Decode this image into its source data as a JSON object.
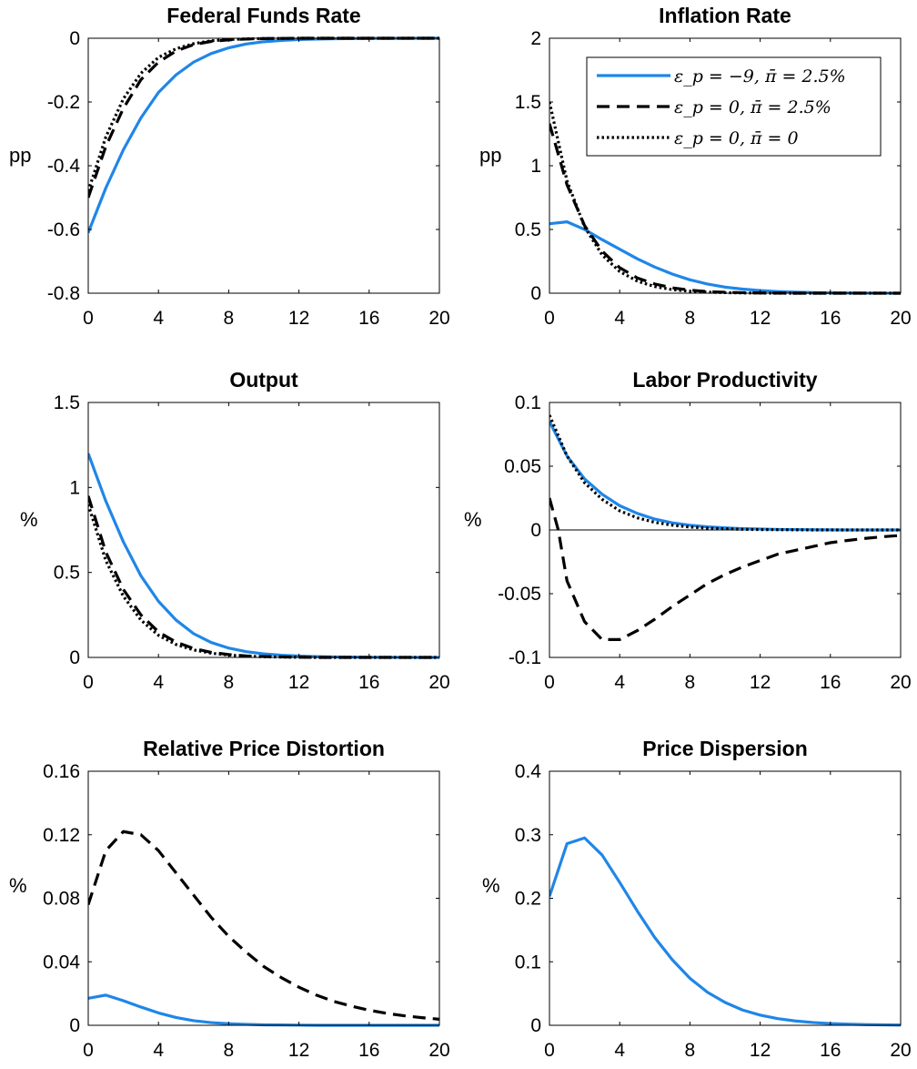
{
  "legend": {
    "entries": [
      "ε_p = −9, π̄ = 2.5%",
      "ε_p = 0, π̄ = 2.5%",
      "ε_p = 0, π̄ = 0"
    ]
  },
  "colors": {
    "baseline": "#1f86e8",
    "alt": "#000000",
    "zero_line": "#000000"
  },
  "chart_data": [
    {
      "type": "line",
      "title": "Federal Funds Rate",
      "ylabel": "pp",
      "xlim": [
        0,
        20
      ],
      "ylim": [
        -0.8,
        0
      ],
      "xticks": [
        0,
        4,
        8,
        12,
        16,
        20
      ],
      "yticks": [
        -0.8,
        -0.6,
        -0.4,
        -0.2,
        0
      ],
      "ytick_labels": [
        "-0.8",
        "-0.6",
        "-0.4",
        "-0.2",
        "0"
      ],
      "grid": false,
      "series": [
        {
          "style": "solid",
          "x": [
            0,
            1,
            2,
            3,
            4,
            5,
            6,
            7,
            8,
            9,
            10,
            11,
            12,
            13,
            14,
            15,
            16,
            17,
            18,
            19,
            20
          ],
          "y": [
            -0.61,
            -0.47,
            -0.35,
            -0.25,
            -0.17,
            -0.115,
            -0.075,
            -0.048,
            -0.03,
            -0.018,
            -0.011,
            -0.007,
            -0.004,
            -0.0025,
            -0.0015,
            -0.001,
            -0.0005,
            -0.0003,
            -0.0002,
            -0.0001,
            0
          ]
        },
        {
          "style": "dashed",
          "x": [
            0,
            1,
            2,
            3,
            4,
            5,
            6,
            7,
            8,
            9,
            10,
            11,
            12,
            13,
            14,
            15,
            16,
            17,
            18,
            19,
            20
          ],
          "y": [
            -0.5,
            -0.34,
            -0.22,
            -0.13,
            -0.075,
            -0.04,
            -0.02,
            -0.01,
            -0.005,
            -0.0025,
            -0.001,
            -0.0005,
            0,
            0,
            0,
            0,
            0,
            0,
            0,
            0,
            0
          ]
        },
        {
          "style": "dotted",
          "x": [
            0,
            1,
            2,
            3,
            4,
            5,
            6,
            7,
            8,
            9,
            10,
            11,
            12,
            13,
            14,
            15,
            16,
            17,
            18,
            19,
            20
          ],
          "y": [
            -0.48,
            -0.31,
            -0.19,
            -0.11,
            -0.06,
            -0.033,
            -0.017,
            -0.008,
            -0.004,
            -0.002,
            -0.001,
            -0.0005,
            0,
            0,
            0,
            0,
            0,
            0,
            0,
            0,
            0
          ]
        }
      ]
    },
    {
      "type": "line",
      "title": "Inflation Rate",
      "ylabel": "pp",
      "xlim": [
        0,
        20
      ],
      "ylim": [
        0,
        2
      ],
      "xticks": [
        0,
        4,
        8,
        12,
        16,
        20
      ],
      "yticks": [
        0,
        0.5,
        1,
        1.5,
        2
      ],
      "ytick_labels": [
        "0",
        "0.5",
        "1",
        "1.5",
        "2"
      ],
      "grid": false,
      "legend_position": "top-right",
      "series": [
        {
          "style": "solid",
          "x": [
            0,
            1,
            2,
            3,
            4,
            5,
            6,
            7,
            8,
            9,
            10,
            11,
            12,
            13,
            14,
            15,
            16,
            17,
            18,
            19,
            20
          ],
          "y": [
            0.545,
            0.56,
            0.5,
            0.42,
            0.345,
            0.27,
            0.205,
            0.15,
            0.105,
            0.072,
            0.048,
            0.032,
            0.021,
            0.013,
            0.008,
            0.005,
            0.003,
            0.002,
            0.001,
            0.0005,
            0
          ]
        },
        {
          "style": "dashed",
          "x": [
            0,
            1,
            2,
            3,
            4,
            5,
            6,
            7,
            8,
            9,
            10,
            11,
            12,
            13,
            14,
            15,
            16,
            17,
            18,
            19,
            20
          ],
          "y": [
            1.33,
            0.85,
            0.53,
            0.33,
            0.2,
            0.12,
            0.072,
            0.042,
            0.024,
            0.013,
            0.007,
            0.004,
            0.002,
            0.001,
            0,
            0,
            0,
            0,
            0,
            0,
            0
          ]
        },
        {
          "style": "dotted",
          "x": [
            0,
            1,
            2,
            3,
            4,
            5,
            6,
            7,
            8,
            9,
            10,
            11,
            12,
            13,
            14,
            15,
            16,
            17,
            18,
            19,
            20
          ],
          "y": [
            1.5,
            0.88,
            0.52,
            0.3,
            0.17,
            0.095,
            0.052,
            0.028,
            0.015,
            0.008,
            0.004,
            0.002,
            0.001,
            0,
            0,
            0,
            0,
            0,
            0,
            0,
            0
          ]
        }
      ]
    },
    {
      "type": "line",
      "title": "Output",
      "ylabel": "%",
      "xlim": [
        0,
        20
      ],
      "ylim": [
        0,
        1.5
      ],
      "xticks": [
        0,
        4,
        8,
        12,
        16,
        20
      ],
      "yticks": [
        0,
        0.5,
        1,
        1.5
      ],
      "ytick_labels": [
        "0",
        "0.5",
        "1",
        "1.5"
      ],
      "grid": false,
      "series": [
        {
          "style": "solid",
          "x": [
            0,
            1,
            2,
            3,
            4,
            5,
            6,
            7,
            8,
            9,
            10,
            11,
            12,
            13,
            14,
            15,
            16,
            17,
            18,
            19,
            20
          ],
          "y": [
            1.2,
            0.92,
            0.68,
            0.48,
            0.33,
            0.22,
            0.14,
            0.088,
            0.055,
            0.034,
            0.021,
            0.013,
            0.008,
            0.005,
            0.003,
            0.002,
            0.001,
            0.0005,
            0.0003,
            0.0001,
            0
          ]
        },
        {
          "style": "dashed",
          "x": [
            0,
            1,
            2,
            3,
            4,
            5,
            6,
            7,
            8,
            9,
            10,
            11,
            12,
            13,
            14,
            15,
            16,
            17,
            18,
            19,
            20
          ],
          "y": [
            0.95,
            0.62,
            0.4,
            0.25,
            0.15,
            0.09,
            0.053,
            0.03,
            0.017,
            0.009,
            0.005,
            0.003,
            0.001,
            0,
            0,
            0,
            0,
            0,
            0,
            0,
            0
          ]
        },
        {
          "style": "dotted",
          "x": [
            0,
            1,
            2,
            3,
            4,
            5,
            6,
            7,
            8,
            9,
            10,
            11,
            12,
            13,
            14,
            15,
            16,
            17,
            18,
            19,
            20
          ],
          "y": [
            0.9,
            0.57,
            0.36,
            0.22,
            0.13,
            0.076,
            0.044,
            0.025,
            0.014,
            0.007,
            0.004,
            0.002,
            0.001,
            0,
            0,
            0,
            0,
            0,
            0,
            0,
            0
          ]
        }
      ]
    },
    {
      "type": "line",
      "title": "Labor Productivity",
      "ylabel": "%",
      "xlim": [
        0,
        20
      ],
      "ylim": [
        -0.1,
        0.1
      ],
      "xticks": [
        0,
        4,
        8,
        12,
        16,
        20
      ],
      "yticks": [
        -0.1,
        -0.05,
        0,
        0.05,
        0.1
      ],
      "ytick_labels": [
        "-0.1",
        "-0.05",
        "0",
        "0.05",
        "0.1"
      ],
      "grid": false,
      "zero_line": true,
      "series": [
        {
          "style": "solid",
          "x": [
            0,
            1,
            2,
            3,
            4,
            5,
            6,
            7,
            8,
            9,
            10,
            11,
            12,
            13,
            14,
            15,
            16,
            17,
            18,
            19,
            20
          ],
          "y": [
            0.085,
            0.058,
            0.04,
            0.028,
            0.019,
            0.013,
            0.0085,
            0.0056,
            0.0037,
            0.0024,
            0.0016,
            0.001,
            0.0007,
            0.0004,
            0.0003,
            0.0002,
            0.0001,
            0,
            0,
            0,
            0
          ]
        },
        {
          "style": "dashed",
          "x": [
            0,
            0.5,
            1,
            2,
            3,
            4,
            5,
            6,
            7,
            8,
            9,
            10,
            11,
            12,
            13,
            14,
            15,
            16,
            17,
            18,
            19,
            20
          ],
          "y": [
            0.025,
            0,
            -0.04,
            -0.072,
            -0.086,
            -0.086,
            -0.079,
            -0.07,
            -0.06,
            -0.051,
            -0.042,
            -0.035,
            -0.029,
            -0.024,
            -0.019,
            -0.016,
            -0.013,
            -0.01,
            -0.0082,
            -0.0066,
            -0.0053,
            -0.0043
          ]
        },
        {
          "style": "dotted",
          "x": [
            0,
            1,
            2,
            3,
            4,
            5,
            6,
            7,
            8,
            9,
            10,
            11,
            12,
            13,
            14,
            15,
            16,
            17,
            18,
            19,
            20
          ],
          "y": [
            0.09,
            0.058,
            0.037,
            0.024,
            0.015,
            0.0095,
            0.006,
            0.0037,
            0.0023,
            0.0014,
            0.0009,
            0.0005,
            0.0003,
            0.0002,
            0.0001,
            0,
            0,
            0,
            0,
            0,
            0
          ]
        }
      ]
    },
    {
      "type": "line",
      "title": "Relative Price Distortion",
      "ylabel": "%",
      "xlim": [
        0,
        20
      ],
      "ylim": [
        0,
        0.16
      ],
      "xticks": [
        0,
        4,
        8,
        12,
        16,
        20
      ],
      "yticks": [
        0,
        0.04,
        0.08,
        0.12,
        0.16
      ],
      "ytick_labels": [
        "0",
        "0.04",
        "0.08",
        "0.12",
        "0.16"
      ],
      "grid": false,
      "series": [
        {
          "style": "solid",
          "x": [
            0,
            1,
            2,
            3,
            4,
            5,
            6,
            7,
            8,
            9,
            10,
            11,
            12,
            13,
            14,
            15,
            16,
            17,
            18,
            19,
            20
          ],
          "y": [
            0.017,
            0.019,
            0.0155,
            0.0115,
            0.0078,
            0.0049,
            0.0029,
            0.0017,
            0.001,
            0.0006,
            0.0003,
            0.0002,
            0.0001,
            0,
            0,
            0,
            0,
            0,
            0,
            0,
            0
          ]
        },
        {
          "style": "dashed",
          "x": [
            0,
            1,
            2,
            3,
            4,
            5,
            6,
            7,
            8,
            9,
            10,
            11,
            12,
            13,
            14,
            15,
            16,
            17,
            18,
            19,
            20
          ],
          "y": [
            0.076,
            0.11,
            0.122,
            0.12,
            0.11,
            0.096,
            0.082,
            0.068,
            0.056,
            0.046,
            0.037,
            0.03,
            0.024,
            0.019,
            0.015,
            0.012,
            0.0095,
            0.0075,
            0.006,
            0.0048,
            0.0038
          ]
        }
      ]
    },
    {
      "type": "line",
      "title": "Price Dispersion",
      "ylabel": "%",
      "xlim": [
        0,
        20
      ],
      "ylim": [
        0,
        0.4
      ],
      "xticks": [
        0,
        4,
        8,
        12,
        16,
        20
      ],
      "yticks": [
        0,
        0.1,
        0.2,
        0.3,
        0.4
      ],
      "ytick_labels": [
        "0",
        "0.1",
        "0.2",
        "0.3",
        "0.4"
      ],
      "grid": false,
      "series": [
        {
          "style": "solid",
          "x": [
            0,
            1,
            2,
            3,
            4,
            5,
            6,
            7,
            8,
            9,
            10,
            11,
            12,
            13,
            14,
            15,
            16,
            17,
            18,
            19,
            20
          ],
          "y": [
            0.203,
            0.286,
            0.295,
            0.268,
            0.225,
            0.18,
            0.138,
            0.103,
            0.074,
            0.052,
            0.036,
            0.024,
            0.016,
            0.0105,
            0.0068,
            0.0044,
            0.0028,
            0.0018,
            0.0011,
            0.0007,
            0.0004
          ]
        }
      ]
    }
  ]
}
